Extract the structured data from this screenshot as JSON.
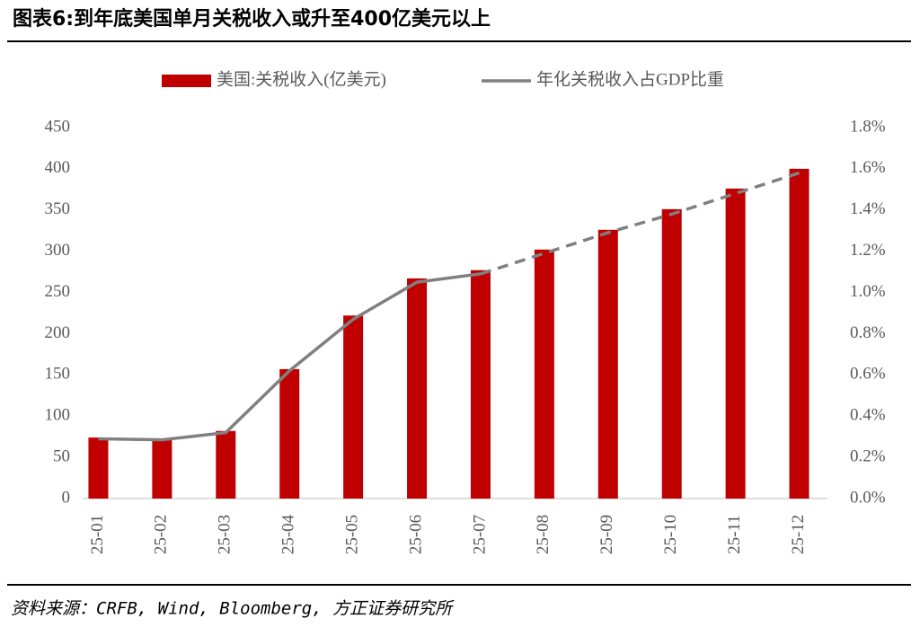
{
  "chart_data": {
    "type": "bar-line",
    "title": "图表6:到年底美国单月关税收入或升至400亿美元以上",
    "source": "资料来源：CRFB, Wind, Bloomberg, 方正证券研究所",
    "categories": [
      "25-01",
      "25-02",
      "25-03",
      "25-04",
      "25-05",
      "25-06",
      "25-07",
      "25-08",
      "25-09",
      "25-10",
      "25-11",
      "25-12"
    ],
    "series": [
      {
        "name": "美国:关税收入(亿美元)",
        "type": "bar",
        "color": "#c00000",
        "values": [
          74,
          72,
          82,
          157,
          222,
          267,
          277,
          302,
          326,
          351,
          376,
          400
        ]
      },
      {
        "name": "年化关税收入占GDP比重",
        "type": "line",
        "axis": "y2",
        "color": "#808080",
        "dashed_from": "25-07",
        "values": [
          0.29,
          0.285,
          0.32,
          0.62,
          0.87,
          1.05,
          1.09,
          1.19,
          1.29,
          1.38,
          1.48,
          1.58
        ]
      }
    ],
    "ylim": [
      0,
      450
    ],
    "yticks": [
      0,
      50,
      100,
      150,
      200,
      250,
      300,
      350,
      400,
      450
    ],
    "y2lim": [
      0,
      1.8
    ],
    "y2ticks": [
      {
        "value": 0,
        "label": "0.0%"
      },
      {
        "value": 0.2,
        "label": "0.2%"
      },
      {
        "value": 0.4,
        "label": "0.4%"
      },
      {
        "value": 0.6,
        "label": "0.6%"
      },
      {
        "value": 0.8,
        "label": "0.8%"
      },
      {
        "value": 1.0,
        "label": "1.0%"
      },
      {
        "value": 1.2,
        "label": "1.2%"
      },
      {
        "value": 1.4,
        "label": "1.4%"
      },
      {
        "value": 1.6,
        "label": "1.6%"
      },
      {
        "value": 1.8,
        "label": "1.8%"
      }
    ],
    "legend": "top"
  }
}
